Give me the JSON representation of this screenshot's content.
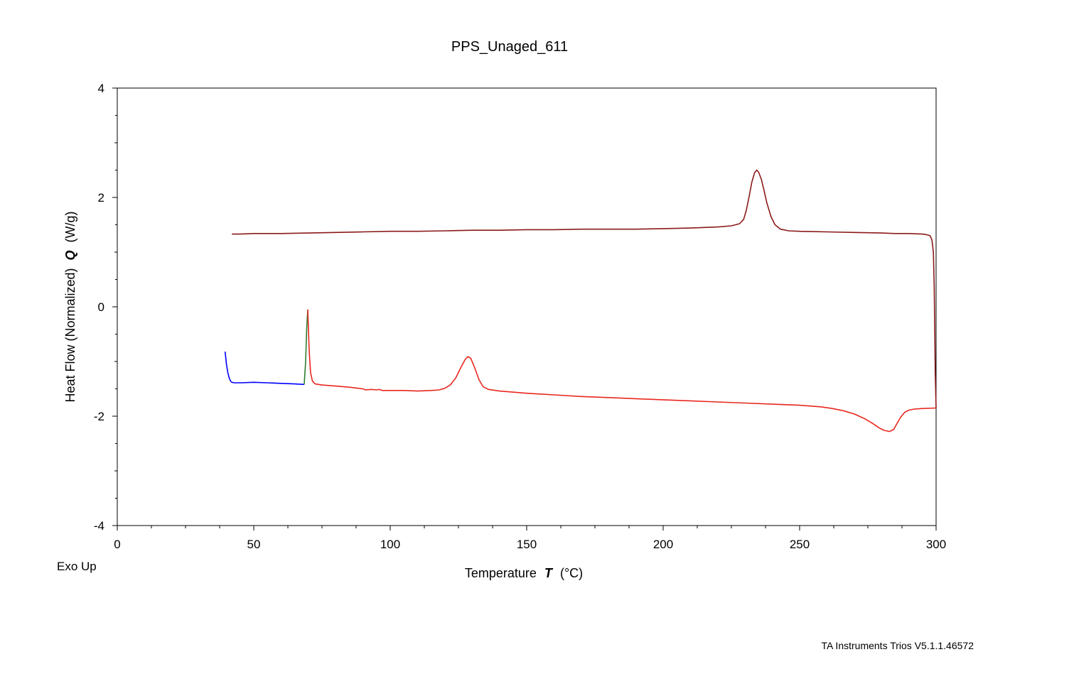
{
  "chart_data": {
    "type": "line",
    "title": "PPS_Unaged_611",
    "xlabel": {
      "prefix": "Temperature",
      "symbol": "T",
      "unit": "(°C)"
    },
    "ylabel": {
      "prefix": "Heat Flow (Normalized)",
      "symbol": "Q",
      "unit": "(W/g)"
    },
    "xlim": [
      0,
      300
    ],
    "ylim": [
      -4,
      4
    ],
    "x_ticks": [
      0,
      50,
      100,
      150,
      200,
      250,
      300
    ],
    "y_ticks": [
      -4,
      -2,
      0,
      2,
      4
    ],
    "grid": false,
    "series": [
      {
        "color": "#0000ff",
        "points": [
          [
            39.5,
            -0.82
          ],
          [
            40,
            -1.05
          ],
          [
            40.5,
            -1.2
          ],
          [
            41,
            -1.3
          ],
          [
            41.5,
            -1.36
          ],
          [
            42,
            -1.38
          ],
          [
            43,
            -1.39
          ],
          [
            45,
            -1.39
          ],
          [
            50,
            -1.38
          ],
          [
            55,
            -1.39
          ],
          [
            60,
            -1.4
          ],
          [
            65,
            -1.41
          ],
          [
            68.5,
            -1.42
          ]
        ]
      },
      {
        "color": "#2e7d32",
        "points": [
          [
            68.5,
            -1.42
          ],
          [
            69,
            -1.0
          ],
          [
            69.4,
            -0.4
          ],
          [
            69.8,
            -0.05
          ]
        ]
      },
      {
        "color": "#e8281e",
        "points": [
          [
            69.8,
            -0.05
          ],
          [
            70.3,
            -0.8
          ],
          [
            70.8,
            -1.2
          ],
          [
            71.5,
            -1.36
          ],
          [
            72.5,
            -1.41
          ],
          [
            75,
            -1.43
          ],
          [
            80,
            -1.45
          ],
          [
            85,
            -1.47
          ],
          [
            90,
            -1.5
          ],
          [
            91,
            -1.52
          ],
          [
            93,
            -1.51
          ],
          [
            95,
            -1.52
          ],
          [
            96,
            -1.51
          ],
          [
            97,
            -1.53
          ],
          [
            100,
            -1.53
          ],
          [
            105,
            -1.53
          ],
          [
            110,
            -1.54
          ],
          [
            115,
            -1.53
          ],
          [
            118,
            -1.52
          ],
          [
            120,
            -1.49
          ],
          [
            122,
            -1.43
          ],
          [
            124,
            -1.3
          ],
          [
            126,
            -1.1
          ],
          [
            127.5,
            -0.96
          ],
          [
            128.5,
            -0.91
          ],
          [
            129.5,
            -0.94
          ],
          [
            131,
            -1.12
          ],
          [
            132.5,
            -1.33
          ],
          [
            134,
            -1.46
          ],
          [
            136,
            -1.51
          ],
          [
            140,
            -1.54
          ],
          [
            150,
            -1.58
          ],
          [
            160,
            -1.61
          ],
          [
            170,
            -1.64
          ],
          [
            180,
            -1.66
          ],
          [
            190,
            -1.68
          ],
          [
            200,
            -1.7
          ],
          [
            210,
            -1.72
          ],
          [
            220,
            -1.74
          ],
          [
            230,
            -1.76
          ],
          [
            240,
            -1.78
          ],
          [
            250,
            -1.8
          ],
          [
            258,
            -1.83
          ],
          [
            262,
            -1.86
          ],
          [
            266,
            -1.9
          ],
          [
            270,
            -1.96
          ],
          [
            274,
            -2.05
          ],
          [
            277,
            -2.14
          ],
          [
            279,
            -2.21
          ],
          [
            281,
            -2.26
          ],
          [
            283,
            -2.28
          ],
          [
            284.5,
            -2.24
          ],
          [
            285.5,
            -2.15
          ],
          [
            287,
            -2.02
          ],
          [
            288.5,
            -1.93
          ],
          [
            290,
            -1.89
          ],
          [
            292,
            -1.87
          ],
          [
            295,
            -1.86
          ],
          [
            300,
            -1.85
          ]
        ]
      },
      {
        "color": "#8b1a1a",
        "points": [
          [
            300,
            -1.85
          ],
          [
            299.7,
            -1.2
          ],
          [
            299.5,
            -0.4
          ],
          [
            299.3,
            0.4
          ],
          [
            299,
            1.0
          ],
          [
            298.5,
            1.22
          ],
          [
            297.8,
            1.3
          ],
          [
            296.5,
            1.32
          ],
          [
            295,
            1.33
          ],
          [
            290,
            1.34
          ],
          [
            285,
            1.34
          ],
          [
            280,
            1.35
          ],
          [
            270,
            1.36
          ],
          [
            260,
            1.37
          ],
          [
            250,
            1.38
          ],
          [
            246,
            1.39
          ],
          [
            243,
            1.42
          ],
          [
            241,
            1.5
          ],
          [
            239.5,
            1.65
          ],
          [
            238,
            1.9
          ],
          [
            237,
            2.12
          ],
          [
            236,
            2.33
          ],
          [
            235,
            2.46
          ],
          [
            234.3,
            2.5
          ],
          [
            233.5,
            2.45
          ],
          [
            232.5,
            2.28
          ],
          [
            231.5,
            2.02
          ],
          [
            230.5,
            1.77
          ],
          [
            229.5,
            1.6
          ],
          [
            228,
            1.52
          ],
          [
            225,
            1.48
          ],
          [
            220,
            1.46
          ],
          [
            210,
            1.44
          ],
          [
            200,
            1.43
          ],
          [
            190,
            1.42
          ],
          [
            180,
            1.42
          ],
          [
            170,
            1.42
          ],
          [
            160,
            1.41
          ],
          [
            150,
            1.41
          ],
          [
            140,
            1.4
          ],
          [
            130,
            1.4
          ],
          [
            120,
            1.39
          ],
          [
            110,
            1.38
          ],
          [
            100,
            1.38
          ],
          [
            90,
            1.37
          ],
          [
            80,
            1.36
          ],
          [
            70,
            1.35
          ],
          [
            60,
            1.34
          ],
          [
            50,
            1.34
          ],
          [
            45,
            1.33
          ],
          [
            42,
            1.33
          ]
        ]
      }
    ],
    "annotations": [
      "Exo Up"
    ]
  },
  "footer": {
    "credit": "TA Instruments Trios V5.1.1.46572"
  }
}
